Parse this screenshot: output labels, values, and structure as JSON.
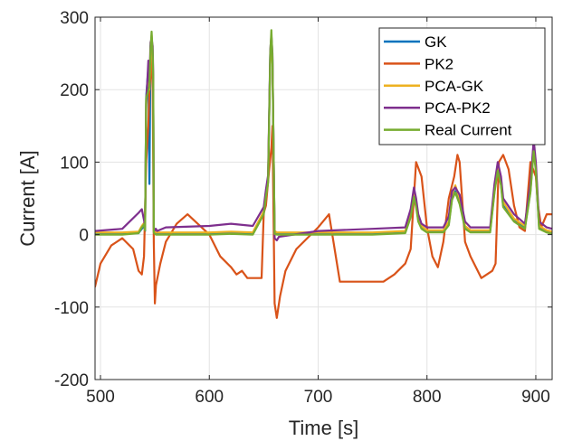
{
  "chart_data": {
    "type": "line",
    "xlabel": "Time [s]",
    "ylabel": "Current [A]",
    "xlim": [
      495,
      915
    ],
    "ylim": [
      -200,
      300
    ],
    "xticks": [
      500,
      600,
      700,
      800,
      900
    ],
    "yticks": [
      -200,
      -100,
      0,
      100,
      200,
      300
    ],
    "grid": true,
    "legend_position": "top-right",
    "series": [
      {
        "name": "GK",
        "color": "#0072bd",
        "x": [
          495,
          520,
          535,
          538,
          540,
          541,
          542,
          544,
          545,
          546,
          547,
          548,
          548.5,
          549,
          550,
          551,
          552,
          560,
          600,
          620,
          640,
          650,
          652,
          654,
          656,
          657,
          658,
          660,
          662,
          664,
          700,
          750,
          780,
          785,
          788,
          790,
          792,
          795,
          800,
          815,
          820,
          823,
          826,
          830,
          835,
          840,
          858,
          862,
          865,
          868,
          870,
          880,
          890,
          895,
          898,
          900,
          903,
          910,
          915
        ],
        "y": [
          2,
          2,
          2,
          8,
          12,
          5,
          190,
          230,
          70,
          260,
          270,
          240,
          210,
          5,
          3,
          2,
          2,
          2,
          2,
          2,
          2,
          30,
          55,
          75,
          250,
          270,
          240,
          3,
          2,
          2,
          2,
          2,
          3,
          25,
          55,
          40,
          20,
          10,
          5,
          5,
          15,
          50,
          60,
          45,
          10,
          5,
          5,
          60,
          90,
          70,
          40,
          20,
          10,
          60,
          120,
          90,
          10,
          5,
          3
        ]
      },
      {
        "name": "PK2",
        "color": "#d95319",
        "x": [
          495,
          500,
          510,
          520,
          530,
          535,
          538,
          540,
          542,
          544,
          545,
          546,
          547,
          548,
          549,
          550,
          551,
          555,
          560,
          570,
          580,
          600,
          610,
          620,
          625,
          630,
          635,
          640,
          648,
          650,
          652,
          655,
          657,
          658,
          660,
          662,
          665,
          670,
          680,
          700,
          710,
          720,
          730,
          740,
          750,
          760,
          770,
          780,
          785,
          790,
          795,
          800,
          805,
          810,
          815,
          820,
          825,
          828,
          830,
          835,
          840,
          845,
          850,
          860,
          863,
          866,
          870,
          875,
          880,
          885,
          890,
          895,
          900,
          902,
          905,
          910,
          915
        ],
        "y": [
          -72,
          -40,
          -15,
          -5,
          -20,
          -50,
          -55,
          -30,
          100,
          150,
          200,
          220,
          245,
          200,
          -10,
          -95,
          -70,
          -40,
          -10,
          15,
          28,
          0,
          -30,
          -45,
          -55,
          -50,
          -60,
          -60,
          -60,
          30,
          40,
          90,
          120,
          150,
          -95,
          -115,
          -85,
          -50,
          -20,
          10,
          28,
          -65,
          -65,
          -65,
          -65,
          -65,
          -55,
          -40,
          -20,
          100,
          80,
          10,
          -30,
          -45,
          -10,
          50,
          80,
          110,
          100,
          -10,
          -30,
          -45,
          -60,
          -50,
          -40,
          100,
          110,
          90,
          40,
          10,
          5,
          100,
          80,
          40,
          10,
          28,
          28
        ]
      },
      {
        "name": "PCA-GK",
        "color": "#edb120",
        "x": [
          495,
          520,
          535,
          538,
          540,
          541,
          542,
          544,
          545,
          546,
          547,
          548,
          548.5,
          549,
          550,
          551,
          552,
          560,
          600,
          620,
          640,
          650,
          652,
          654,
          656,
          657,
          658,
          660,
          662,
          664,
          700,
          750,
          780,
          785,
          788,
          790,
          792,
          795,
          800,
          815,
          820,
          823,
          826,
          830,
          835,
          840,
          858,
          862,
          865,
          868,
          870,
          880,
          890,
          895,
          898,
          900,
          903,
          910,
          915
        ],
        "y": [
          3,
          3,
          4,
          12,
          16,
          8,
          185,
          225,
          200,
          250,
          275,
          230,
          205,
          6,
          4,
          3,
          3,
          3,
          3,
          4,
          3,
          32,
          58,
          78,
          245,
          265,
          235,
          5,
          3,
          3,
          3,
          3,
          5,
          28,
          60,
          45,
          22,
          12,
          6,
          6,
          18,
          55,
          68,
          50,
          12,
          6,
          6,
          65,
          95,
          75,
          45,
          22,
          12,
          65,
          125,
          95,
          12,
          6,
          4
        ]
      },
      {
        "name": "PCA-PK2",
        "color": "#7e2f8e",
        "x": [
          495,
          520,
          535,
          538,
          540,
          541,
          542,
          544,
          545,
          546,
          547,
          548,
          548.5,
          549,
          550,
          551,
          552,
          560,
          600,
          620,
          640,
          650,
          652,
          654,
          656,
          657,
          658,
          660,
          662,
          664,
          700,
          750,
          780,
          785,
          788,
          790,
          792,
          795,
          800,
          815,
          820,
          823,
          826,
          830,
          835,
          840,
          858,
          862,
          865,
          868,
          870,
          880,
          890,
          895,
          898,
          900,
          903,
          910,
          915
        ],
        "y": [
          5,
          8,
          30,
          35,
          20,
          10,
          180,
          240,
          210,
          265,
          270,
          260,
          220,
          10,
          6,
          8,
          5,
          10,
          12,
          15,
          12,
          38,
          62,
          82,
          255,
          275,
          250,
          -5,
          -8,
          -3,
          5,
          8,
          10,
          35,
          65,
          50,
          28,
          15,
          10,
          10,
          25,
          60,
          65,
          55,
          18,
          10,
          10,
          70,
          100,
          80,
          50,
          28,
          15,
          70,
          130,
          100,
          18,
          10,
          8
        ]
      },
      {
        "name": "Real Current",
        "color": "#77ac30",
        "x": [
          495,
          520,
          535,
          538,
          540,
          541,
          542,
          544,
          545,
          546,
          547,
          548,
          548.5,
          549,
          550,
          551,
          552,
          560,
          600,
          620,
          640,
          650,
          652,
          654,
          656,
          657,
          658,
          660,
          662,
          664,
          700,
          750,
          780,
          785,
          788,
          790,
          792,
          795,
          800,
          815,
          820,
          823,
          826,
          830,
          835,
          840,
          858,
          862,
          865,
          868,
          870,
          880,
          890,
          895,
          898,
          900,
          903,
          910,
          915
        ],
        "y": [
          0,
          0,
          2,
          10,
          14,
          6,
          188,
          198,
          205,
          255,
          280,
          250,
          215,
          3,
          1,
          0,
          0,
          0,
          0,
          1,
          0,
          28,
          52,
          72,
          250,
          282,
          245,
          1,
          0,
          0,
          0,
          0,
          2,
          24,
          52,
          38,
          18,
          8,
          3,
          3,
          13,
          48,
          58,
          42,
          8,
          3,
          3,
          58,
          88,
          68,
          38,
          18,
          8,
          58,
          115,
          88,
          8,
          3,
          1
        ]
      }
    ]
  }
}
